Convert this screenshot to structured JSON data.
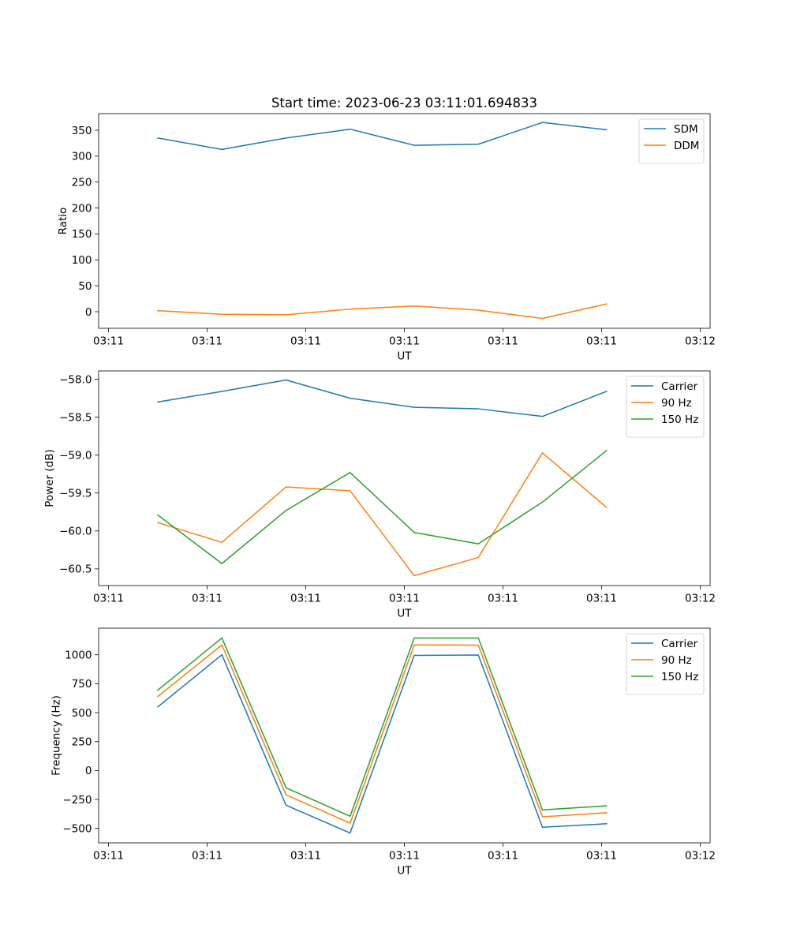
{
  "figure_title": "Start time: 2023-06-23 03:11:01.694833",
  "colors": {
    "blue": "#1f77b4",
    "orange": "#ff7f0e",
    "green": "#2ca02c"
  },
  "chart_data": [
    {
      "type": "line",
      "title": "Start time: 2023-06-23 03:11:01.694833",
      "xlabel": "UT",
      "ylabel": "Ratio",
      "x_ticks": [
        0,
        1,
        2,
        3,
        4,
        5,
        6
      ],
      "x_tick_labels": [
        "03:11",
        "03:11",
        "03:11",
        "03:11",
        "03:11",
        "03:11",
        "03:12"
      ],
      "x_range": [
        -0.1,
        6.1
      ],
      "x": [
        0.5,
        1.15,
        1.8,
        2.45,
        3.1,
        3.75,
        4.4,
        5.05
      ],
      "ylim": [
        -32,
        382
      ],
      "y_ticks": [
        0,
        50,
        100,
        150,
        200,
        250,
        300,
        350
      ],
      "legend_position": "upper right",
      "series": [
        {
          "name": "SDM",
          "color": "#1f77b4",
          "values": [
            335,
            313,
            335,
            352,
            321,
            323,
            365,
            351
          ]
        },
        {
          "name": "DDM",
          "color": "#ff7f0e",
          "values": [
            2,
            -5,
            -6,
            5,
            11,
            3,
            -13,
            15
          ]
        }
      ]
    },
    {
      "type": "line",
      "title": "",
      "xlabel": "UT",
      "ylabel": "Power (dB)",
      "x_ticks": [
        0,
        1,
        2,
        3,
        4,
        5,
        6
      ],
      "x_tick_labels": [
        "03:11",
        "03:11",
        "03:11",
        "03:11",
        "03:11",
        "03:11",
        "03:12"
      ],
      "x_range": [
        -0.1,
        6.1
      ],
      "x": [
        0.5,
        1.15,
        1.8,
        2.45,
        3.1,
        3.75,
        4.4,
        5.05
      ],
      "ylim": [
        -60.72,
        -57.89
      ],
      "y_ticks": [
        -58.0,
        -58.5,
        -59.0,
        -59.5,
        -60.0,
        -60.5
      ],
      "y_tick_labels": [
        "−58.0",
        "−58.5",
        "−59.0",
        "−59.5",
        "−60.0",
        "−60.5"
      ],
      "legend_position": "upper right",
      "series": [
        {
          "name": "Carrier",
          "color": "#1f77b4",
          "values": [
            -58.3,
            -58.16,
            -58.01,
            -58.25,
            -58.37,
            -58.39,
            -58.49,
            -58.16
          ]
        },
        {
          "name": "90 Hz",
          "color": "#ff7f0e",
          "values": [
            -59.89,
            -60.15,
            -59.42,
            -59.47,
            -60.59,
            -60.35,
            -58.97,
            -59.69
          ]
        },
        {
          "name": "150 Hz",
          "color": "#2ca02c",
          "values": [
            -59.79,
            -60.43,
            -59.73,
            -59.23,
            -60.02,
            -60.17,
            -59.62,
            -58.94
          ]
        }
      ]
    },
    {
      "type": "line",
      "title": "",
      "xlabel": "UT",
      "ylabel": "Frequency (Hz)",
      "x_ticks": [
        0,
        1,
        2,
        3,
        4,
        5,
        6
      ],
      "x_tick_labels": [
        "03:11",
        "03:11",
        "03:11",
        "03:11",
        "03:11",
        "03:11",
        "03:12"
      ],
      "x_range": [
        -0.1,
        6.1
      ],
      "x": [
        0.5,
        1.15,
        1.8,
        2.45,
        3.1,
        3.75,
        4.4,
        5.05
      ],
      "ylim": [
        -625,
        1230
      ],
      "y_ticks": [
        -500,
        -250,
        0,
        250,
        500,
        750,
        1000
      ],
      "y_tick_labels": [
        "−500",
        "−250",
        "0",
        "250",
        "500",
        "750",
        "1000"
      ],
      "legend_position": "upper right",
      "series": [
        {
          "name": "Carrier",
          "color": "#1f77b4",
          "values": [
            550,
            1000,
            -300,
            -540,
            995,
            998,
            -490,
            -460
          ]
        },
        {
          "name": "90 Hz",
          "color": "#ff7f0e",
          "values": [
            640,
            1085,
            -210,
            -455,
            1085,
            1083,
            -400,
            -365
          ]
        },
        {
          "name": "150 Hz",
          "color": "#2ca02c",
          "values": [
            695,
            1145,
            -150,
            -395,
            1145,
            1145,
            -340,
            -305
          ]
        }
      ]
    }
  ]
}
